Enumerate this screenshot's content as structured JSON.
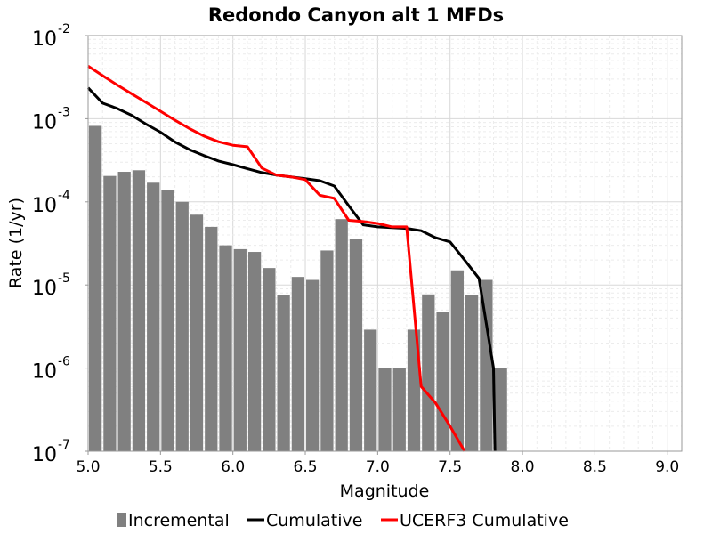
{
  "chart_data": {
    "type": "bar",
    "title": "Redondo Canyon alt 1 MFDs",
    "xlabel": "Magnitude",
    "ylabel": "Rate (1/yr)",
    "xlim": [
      5.0,
      9.1
    ],
    "ylim": [
      1e-07,
      0.01
    ],
    "yscale": "log",
    "grid": true,
    "legend_position": "bottom",
    "x_ticks": [
      "5.0",
      "5.5",
      "6.0",
      "6.5",
      "7.0",
      "7.5",
      "8.0",
      "8.5",
      "9.0"
    ],
    "y_ticks": [
      {
        "base": "10",
        "exp": "-2"
      },
      {
        "base": "10",
        "exp": "-3"
      },
      {
        "base": "10",
        "exp": "-4"
      },
      {
        "base": "10",
        "exp": "-5"
      },
      {
        "base": "10",
        "exp": "-6"
      },
      {
        "base": "10",
        "exp": "-7"
      }
    ],
    "bar_width": 0.1,
    "incremental": {
      "name": "Incremental",
      "color": "#808080",
      "x": [
        5.05,
        5.15,
        5.25,
        5.35,
        5.45,
        5.55,
        5.65,
        5.75,
        5.85,
        5.95,
        6.05,
        6.15,
        6.25,
        6.35,
        6.45,
        6.55,
        6.65,
        6.75,
        6.85,
        6.95,
        7.05,
        7.15,
        7.25,
        7.35,
        7.45,
        7.55,
        7.65,
        7.75,
        7.85
      ],
      "y": [
        0.00082,
        0.000205,
        0.00023,
        0.00024,
        0.00017,
        0.00014,
        0.0001,
        7e-05,
        5e-05,
        3e-05,
        2.7e-05,
        2.5e-05,
        1.6e-05,
        7.5e-06,
        1.25e-05,
        1.15e-05,
        2.6e-05,
        6.2e-05,
        3.6e-05,
        2.9e-06,
        1e-06,
        1e-06,
        2.9e-06,
        7.7e-06,
        4.7e-06,
        1.5e-05,
        7.6e-06,
        1.15e-05,
        1e-06
      ]
    },
    "series": [
      {
        "name": "Cumulative",
        "color": "#000000",
        "x": [
          5.0,
          5.1,
          5.2,
          5.3,
          5.4,
          5.5,
          5.6,
          5.7,
          5.8,
          5.9,
          6.0,
          6.1,
          6.2,
          6.3,
          6.4,
          6.5,
          6.6,
          6.7,
          6.8,
          6.9,
          7.0,
          7.1,
          7.2,
          7.3,
          7.4,
          7.5,
          7.6,
          7.7,
          7.8,
          7.81
        ],
        "y": [
          0.00235,
          0.00154,
          0.00133,
          0.0011,
          0.00086,
          0.00069,
          0.000525,
          0.000425,
          0.00036,
          0.00031,
          0.00028,
          0.00025,
          0.000225,
          0.00021,
          0.0002,
          0.00019,
          0.00018,
          0.000155,
          9e-05,
          5.3e-05,
          5e-05,
          4.9e-05,
          4.8e-05,
          4.5e-05,
          3.7e-05,
          3.3e-05,
          2e-05,
          1.2e-05,
          1e-06,
          1e-07
        ]
      },
      {
        "name": "UCERF3 Cumulative",
        "color": "#ff0000",
        "x": [
          5.0,
          5.1,
          5.2,
          5.3,
          5.4,
          5.5,
          5.6,
          5.7,
          5.8,
          5.9,
          6.0,
          6.1,
          6.2,
          6.3,
          6.4,
          6.5,
          6.6,
          6.7,
          6.8,
          6.9,
          7.0,
          7.1,
          7.2,
          7.3,
          7.4,
          7.5,
          7.6
        ],
        "y": [
          0.0043,
          0.0033,
          0.00255,
          0.002,
          0.00157,
          0.00123,
          0.00096,
          0.00076,
          0.00062,
          0.00053,
          0.00048,
          0.00046,
          0.000255,
          0.00021,
          0.0002,
          0.000185,
          0.00012,
          0.00011,
          6e-05,
          5.8e-05,
          5.5e-05,
          5e-05,
          5e-05,
          6e-07,
          3.8e-07,
          2e-07,
          1e-07
        ]
      }
    ]
  }
}
